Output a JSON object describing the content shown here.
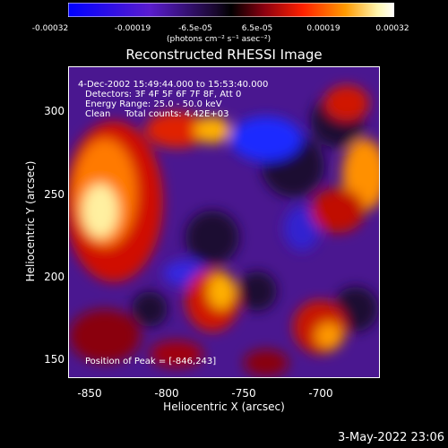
{
  "colorbar": {
    "ticks": [
      "-0.00032",
      "-0.00019",
      "-6.5e-05",
      "6.5e-05",
      "0.00019",
      "0.00032"
    ],
    "unit_label": "(photons cm⁻² s⁻¹ asec⁻²)",
    "colors": [
      "#0000ff",
      "#5a1ccf",
      "#7a1fa0",
      "#000000",
      "#8a0010",
      "#ff2000",
      "#ff9a00",
      "#fff7b0",
      "#ffffff"
    ]
  },
  "title": "Reconstructed RHESSI Image",
  "annotations": {
    "line1": "4-Dec-2002 15:49:44.000 to 15:53:40.000",
    "line2": "Detectors: 3F 4F 5F 6F 7F 8F, Att 0",
    "line3": "Energy Range: 25.0 - 50.0 keV",
    "line4": "Clean     Total counts: 4.42E+03",
    "peak": "Position of Peak = [-846,243]"
  },
  "axes": {
    "xlabel": "Heliocentric X (arcsec)",
    "ylabel": "Heliocentric Y (arcsec)",
    "xticks": [
      "-850",
      "-800",
      "-750",
      "-700"
    ],
    "yticks": [
      "300",
      "250",
      "200",
      "150"
    ]
  },
  "footer_date": "3-May-2022 23:06"
}
